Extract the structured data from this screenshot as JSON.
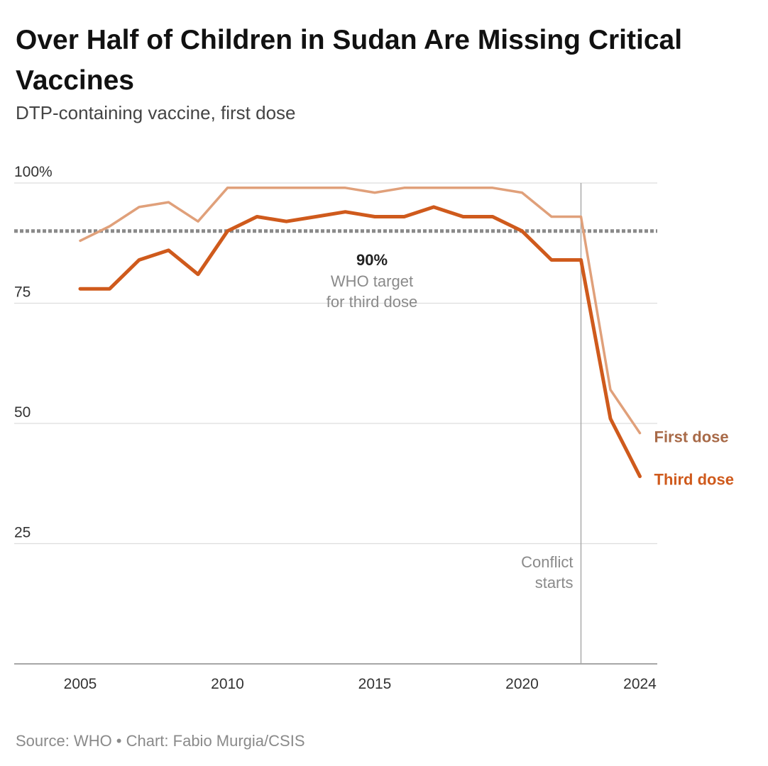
{
  "title": "Over Half of Children in Sudan Are Missing Critical Vaccines",
  "subtitle": "DTP-containing vaccine, first dose",
  "source": "Source: WHO • Chart: Fabio Murgia/CSIS",
  "chart_data": {
    "type": "line",
    "x": [
      2005,
      2006,
      2007,
      2008,
      2009,
      2010,
      2011,
      2012,
      2013,
      2014,
      2015,
      2016,
      2017,
      2018,
      2019,
      2020,
      2021,
      2022,
      2023,
      2024
    ],
    "series": [
      {
        "name": "First dose",
        "color": "#e0a07a",
        "values": [
          88,
          91,
          95,
          96,
          92,
          99,
          99,
          99,
          99,
          99,
          98,
          99,
          99,
          99,
          99,
          98,
          93,
          93,
          57,
          48
        ]
      },
      {
        "name": "Third dose",
        "color": "#cf5a1c",
        "values": [
          78,
          78,
          84,
          86,
          81,
          90,
          93,
          92,
          93,
          94,
          93,
          93,
          95,
          93,
          93,
          90,
          84,
          84,
          51,
          39
        ]
      }
    ],
    "series_label_colors": {
      "First dose": "#a86a48",
      "Third dose": "#cf5a1c"
    },
    "ylim": [
      0,
      100
    ],
    "xlim": [
      2003,
      2024.5
    ],
    "y_ticks": [
      {
        "value": 25,
        "label": "25"
      },
      {
        "value": 50,
        "label": "50"
      },
      {
        "value": 75,
        "label": "75"
      },
      {
        "value": 100,
        "label": "100%"
      }
    ],
    "x_ticks": [
      {
        "value": 2005,
        "label": "2005"
      },
      {
        "value": 2010,
        "label": "2010"
      },
      {
        "value": 2015,
        "label": "2015"
      },
      {
        "value": 2020,
        "label": "2020"
      },
      {
        "value": 2024,
        "label": "2024"
      }
    ],
    "grid": true,
    "reference_line": {
      "value": 90,
      "label_value": "90%",
      "label_lines": [
        "WHO target",
        "for third dose"
      ]
    },
    "event_line": {
      "x": 2022,
      "label_lines": [
        "Conflict",
        "starts"
      ]
    }
  }
}
